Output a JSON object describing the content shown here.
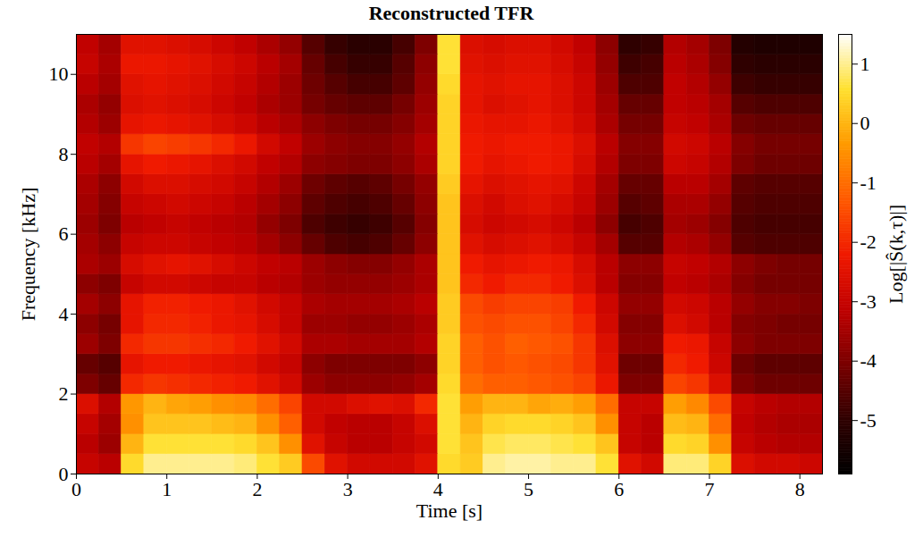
{
  "chart_data": {
    "type": "heatmap",
    "title": "Reconstructed TFR",
    "x_label": "Time [s]",
    "y_label": "Frequency [kHz]",
    "xlim": [
      0,
      8.25
    ],
    "ylim": [
      0,
      11
    ],
    "xticks": [
      0,
      1,
      2,
      3,
      4,
      5,
      6,
      7,
      8
    ],
    "yticks": [
      0,
      2,
      4,
      6,
      8,
      10
    ],
    "x_bins": [
      0,
      0.25,
      0.5,
      0.75,
      1,
      1.25,
      1.5,
      1.75,
      2,
      2.25,
      2.5,
      2.75,
      3,
      3.25,
      3.5,
      3.75,
      4,
      4.25,
      4.5,
      4.75,
      5,
      5.25,
      5.5,
      5.75,
      6,
      6.25,
      6.5,
      6.75,
      7,
      7.25,
      7.5,
      7.75,
      8,
      8.25
    ],
    "y_bins": [
      0,
      0.5,
      1,
      1.5,
      2,
      2.5,
      3,
      3.5,
      4,
      4.5,
      5,
      5.5,
      6,
      6.5,
      7,
      7.5,
      8,
      8.5,
      9,
      9.5,
      10,
      10.5,
      11
    ],
    "cells": [
      [
        -3,
        -3.2,
        0.5,
        1,
        1,
        1,
        1,
        0.9,
        0.6,
        0.3,
        -1.5,
        -2.5,
        -2.8,
        -2.8,
        -2.8,
        -2.5,
        0.5,
        0.3,
        1,
        1.1,
        1.1,
        1,
        1,
        0.6,
        -2.5,
        -2.8,
        0.9,
        0.9,
        0.4,
        -2.6,
        -2.8,
        -2.8,
        -2.9
      ],
      [
        -3.2,
        -3.6,
        0,
        0.6,
        0.6,
        0.6,
        0.6,
        0.5,
        0.2,
        -0.5,
        -2.5,
        -3,
        -3.2,
        -3.2,
        -3,
        -2.8,
        0.6,
        0.2,
        0.7,
        0.8,
        0.8,
        0.7,
        0.6,
        0.2,
        -3,
        -3.2,
        0.5,
        0.4,
        -0.5,
        -3,
        -3.2,
        -3.3,
        -3.3
      ],
      [
        -3,
        -3.5,
        -0.5,
        0.2,
        0.2,
        0.2,
        0.1,
        0,
        -0.5,
        -1.2,
        -2.8,
        -3.1,
        -3.2,
        -3.2,
        -3,
        -2.6,
        0.6,
        0,
        0.4,
        0.5,
        0.5,
        0.4,
        0.2,
        -0.5,
        -3,
        -3.2,
        0.1,
        0,
        -1,
        -3.1,
        -3.3,
        -3.4,
        -3.4
      ],
      [
        -2.6,
        -3.3,
        -0.4,
        0,
        -0.2,
        -0.3,
        -0.5,
        -0.6,
        -1,
        -1.6,
        -2.8,
        -2.8,
        -2.6,
        -2.5,
        -2.6,
        -2,
        0.6,
        -0.3,
        0,
        0,
        -0.2,
        -0.1,
        -0.3,
        -1,
        -3,
        -3,
        -0.3,
        -0.6,
        -1.5,
        -3,
        -3.2,
        -3.3,
        -3.3
      ],
      [
        -4,
        -4.3,
        -2,
        -1.8,
        -1.9,
        -2,
        -2.1,
        -2.2,
        -2.5,
        -2.8,
        -3.6,
        -3.8,
        -3.8,
        -3.8,
        -3.7,
        -3.5,
        0.5,
        -1,
        -1.2,
        -1.2,
        -1.3,
        -1.4,
        -1.6,
        -2.3,
        -4,
        -4,
        -1.6,
        -1.8,
        -2.6,
        -4,
        -4.2,
        -4.2,
        -4.2
      ],
      [
        -4.3,
        -4.5,
        -2.4,
        -2.2,
        -2.2,
        -2.3,
        -2.4,
        -2.5,
        -2.8,
        -3,
        -3.8,
        -4,
        -4,
        -4,
        -4,
        -3.8,
        0.4,
        -1.2,
        -1.4,
        -1.3,
        -1.4,
        -1.5,
        -1.8,
        -2.5,
        -4.2,
        -4.2,
        -2,
        -2.2,
        -2.9,
        -4.2,
        -4.4,
        -4.4,
        -4.4
      ],
      [
        -3.6,
        -4,
        -2,
        -1.8,
        -1.8,
        -1.9,
        -2,
        -2.2,
        -2.5,
        -2.8,
        -3.4,
        -3.4,
        -3.5,
        -3.5,
        -3.5,
        -3.3,
        0.4,
        -1.2,
        -1.4,
        -1.2,
        -1.3,
        -1.4,
        -1.8,
        -2.6,
        -3.8,
        -3.8,
        -2.2,
        -2.3,
        -3,
        -3.8,
        -4,
        -4,
        -4
      ],
      [
        -3.8,
        -4.1,
        -2.4,
        -2,
        -2,
        -2.1,
        -2.3,
        -2.4,
        -2.7,
        -3,
        -3.6,
        -3.6,
        -3.7,
        -3.7,
        -3.6,
        -3.4,
        0.3,
        -1.4,
        -1.5,
        -1.4,
        -1.4,
        -1.6,
        -2,
        -2.8,
        -3.9,
        -3.9,
        -2.6,
        -2.8,
        -3.2,
        -3.9,
        -4,
        -4.1,
        -4.1
      ],
      [
        -3.5,
        -3.8,
        -2.4,
        -2.1,
        -2.1,
        -2.2,
        -2.3,
        -2.5,
        -2.8,
        -3,
        -3.4,
        -3.5,
        -3.5,
        -3.5,
        -3.4,
        -3.2,
        0.3,
        -1.5,
        -1.7,
        -1.6,
        -1.6,
        -1.7,
        -2.2,
        -2.9,
        -3.7,
        -3.7,
        -2.8,
        -2.9,
        -3.2,
        -3.7,
        -3.9,
        -3.9,
        -4
      ],
      [
        -3.8,
        -4,
        -3,
        -2.8,
        -2.8,
        -2.9,
        -3,
        -3,
        -3.2,
        -3.3,
        -3.6,
        -3.7,
        -3.7,
        -3.7,
        -3.6,
        -3.4,
        0.2,
        -2,
        -2.2,
        -2,
        -2,
        -2.2,
        -2.6,
        -3.2,
        -3.9,
        -3.9,
        -3.1,
        -3.2,
        -3.4,
        -3.9,
        -4.1,
        -4.1,
        -4.1
      ],
      [
        -3.4,
        -3.6,
        -2.7,
        -2.5,
        -2.4,
        -2.5,
        -2.7,
        -2.9,
        -3.1,
        -3.2,
        -3.6,
        -3.8,
        -3.9,
        -3.9,
        -3.7,
        -3.4,
        0.2,
        -2.2,
        -2.4,
        -2.3,
        -2.2,
        -2.3,
        -2.7,
        -3.2,
        -3.8,
        -3.8,
        -3,
        -3.1,
        -3.3,
        -3.8,
        -4,
        -4.1,
        -4.1
      ],
      [
        -3.5,
        -3.8,
        -3,
        -2.9,
        -2.9,
        -3,
        -3.1,
        -3.2,
        -3.5,
        -3.8,
        -4.3,
        -4.6,
        -4.7,
        -4.6,
        -4.3,
        -3.8,
        0.2,
        -2.5,
        -2.7,
        -2.6,
        -2.5,
        -2.7,
        -3,
        -3.5,
        -4.5,
        -4.5,
        -3.3,
        -3.4,
        -3.7,
        -4.5,
        -4.6,
        -4.6,
        -4.6
      ],
      [
        -3.6,
        -4,
        -3.2,
        -3.1,
        -3,
        -3.1,
        -3.2,
        -3.3,
        -3.7,
        -4,
        -4.6,
        -4.8,
        -4.9,
        -4.8,
        -4.5,
        -3.9,
        0.2,
        -2.7,
        -2.9,
        -2.8,
        -2.7,
        -2.9,
        -3.2,
        -3.8,
        -4.7,
        -4.6,
        -3.5,
        -3.6,
        -3.9,
        -4.6,
        -4.7,
        -4.7,
        -4.7
      ],
      [
        -3.5,
        -3.9,
        -3,
        -2.9,
        -2.8,
        -2.9,
        -3,
        -3.2,
        -3.5,
        -3.8,
        -4.4,
        -4.6,
        -4.7,
        -4.6,
        -4.3,
        -3.8,
        0.2,
        -2.6,
        -2.8,
        -2.6,
        -2.5,
        -2.7,
        -3,
        -3.6,
        -4.5,
        -4.4,
        -3.4,
        -3.4,
        -3.7,
        -4.5,
        -4.6,
        -4.6,
        -4.6
      ],
      [
        -3.4,
        -3.8,
        -2.8,
        -2.6,
        -2.6,
        -2.7,
        -2.8,
        -3,
        -3.3,
        -3.6,
        -4.2,
        -4.4,
        -4.5,
        -4.4,
        -4.1,
        -3.7,
        0.3,
        -2.4,
        -2.6,
        -2.5,
        -2.4,
        -2.5,
        -2.9,
        -3.5,
        -4.3,
        -4.3,
        -3.2,
        -3.2,
        -3.5,
        -4.4,
        -4.5,
        -4.5,
        -4.5
      ],
      [
        -3.2,
        -3.5,
        -2.4,
        -2.2,
        -2.3,
        -2.4,
        -2.6,
        -2.8,
        -3.1,
        -3.3,
        -3.8,
        -3.9,
        -4,
        -4,
        -3.8,
        -3.4,
        0.4,
        -2.2,
        -2.4,
        -2.3,
        -2.2,
        -2.3,
        -2.7,
        -3.3,
        -4,
        -4,
        -2.9,
        -3,
        -3.3,
        -4,
        -4.2,
        -4.2,
        -4.2
      ],
      [
        -3.1,
        -3.3,
        -1.8,
        -1.6,
        -1.7,
        -1.8,
        -2,
        -2.3,
        -2.8,
        -3.1,
        -3.6,
        -3.8,
        -3.9,
        -3.9,
        -3.7,
        -3.3,
        0.4,
        -2.2,
        -2.3,
        -2.2,
        -2.2,
        -2.3,
        -2.6,
        -3.2,
        -3.9,
        -3.9,
        -2.8,
        -2.9,
        -3.2,
        -3.9,
        -4.1,
        -4.1,
        -4.1
      ],
      [
        -3.3,
        -3.6,
        -2.4,
        -2.3,
        -2.4,
        -2.5,
        -2.7,
        -2.9,
        -3.2,
        -3.4,
        -3.8,
        -4,
        -4.1,
        -4.1,
        -3.9,
        -3.5,
        0.4,
        -2.3,
        -2.4,
        -2.4,
        -2.3,
        -2.5,
        -2.8,
        -3.4,
        -4.1,
        -4.1,
        -3,
        -3.1,
        -3.4,
        -4.2,
        -4.3,
        -4.3,
        -4.3
      ],
      [
        -3.4,
        -3.7,
        -2.6,
        -2.5,
        -2.6,
        -2.7,
        -2.9,
        -3.1,
        -3.4,
        -3.6,
        -4.1,
        -4.3,
        -4.4,
        -4.4,
        -4.1,
        -3.6,
        0.4,
        -2.4,
        -2.6,
        -2.5,
        -2.4,
        -2.6,
        -2.9,
        -3.5,
        -4.3,
        -4.3,
        -3.1,
        -3.2,
        -3.5,
        -4.5,
        -4.6,
        -4.6,
        -4.6
      ],
      [
        -3.2,
        -3.5,
        -2.5,
        -2.4,
        -2.5,
        -2.6,
        -2.8,
        -3,
        -3.3,
        -3.6,
        -4.2,
        -4.5,
        -4.7,
        -4.7,
        -4.4,
        -3.7,
        0.5,
        -2.4,
        -2.5,
        -2.4,
        -2.4,
        -2.6,
        -2.9,
        -3.6,
        -4.6,
        -4.6,
        -3.1,
        -3.3,
        -3.7,
        -4.8,
        -4.9,
        -4.9,
        -4.9
      ],
      [
        -3,
        -3.4,
        -2.3,
        -2.3,
        -2.4,
        -2.5,
        -2.7,
        -2.9,
        -3.2,
        -3.5,
        -4.3,
        -4.7,
        -4.9,
        -4.9,
        -4.5,
        -3.8,
        0.6,
        -2.5,
        -2.6,
        -2.5,
        -2.5,
        -2.7,
        -3,
        -3.7,
        -4.8,
        -4.7,
        -3.2,
        -3.4,
        -3.9,
        -5,
        -5.1,
        -5.1,
        -5.1
      ],
      [
        -3.1,
        -3.5,
        -2.5,
        -2.5,
        -2.6,
        -2.7,
        -2.9,
        -3.1,
        -3.4,
        -3.7,
        -4.5,
        -4.9,
        -5.1,
        -5.1,
        -4.7,
        -4,
        0.6,
        -2.6,
        -2.7,
        -2.6,
        -2.6,
        -2.8,
        -3.1,
        -3.8,
        -5,
        -4.9,
        -3.3,
        -3.5,
        -4,
        -5.2,
        -5.3,
        -5.3,
        -5.3
      ]
    ],
    "colorbar": {
      "range": [
        -5.9,
        1.5
      ],
      "ticks": [
        -5,
        -4,
        -3,
        -2,
        -1,
        0,
        1
      ],
      "label": "Log[|Ŝ(k,τ)|]"
    }
  }
}
